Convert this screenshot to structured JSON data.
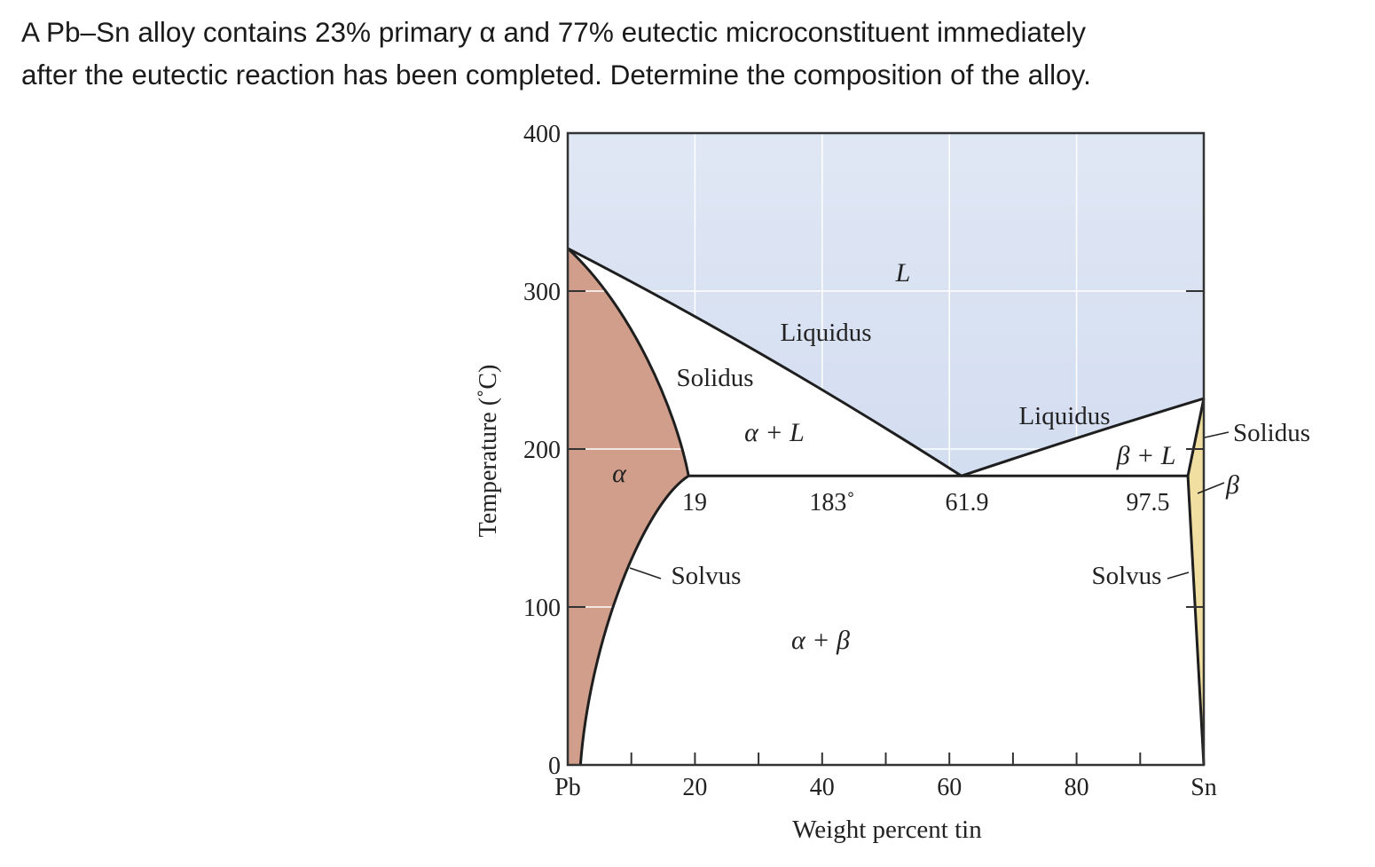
{
  "question": {
    "line1": "A Pb–Sn alloy contains 23% primary α and 77% eutectic microconstituent immediately",
    "line2": "after the eutectic reaction has been completed. Determine the composition of the alloy."
  },
  "chart_data": {
    "type": "phase-diagram",
    "xlabel": "Weight percent tin",
    "ylabel": "Temperature (˚C)",
    "xlim": [
      0,
      100
    ],
    "ylim": [
      0,
      400
    ],
    "x_ticks": [
      {
        "v": 0,
        "label": "Pb"
      },
      {
        "v": 20,
        "label": "20"
      },
      {
        "v": 40,
        "label": "40"
      },
      {
        "v": 60,
        "label": "60"
      },
      {
        "v": 80,
        "label": "80"
      },
      {
        "v": 100,
        "label": "Sn"
      }
    ],
    "y_ticks": [
      {
        "v": 0,
        "label": "0"
      },
      {
        "v": 100,
        "label": "100"
      },
      {
        "v": 200,
        "label": "200"
      },
      {
        "v": 300,
        "label": "300"
      },
      {
        "v": 400,
        "label": "400"
      }
    ],
    "grid": true,
    "key_points": {
      "pb_melting_c": 327,
      "sn_melting_c": 232,
      "eutectic_temp_c": 183,
      "alpha_max_solubility_wt_sn": 19,
      "eutectic_composition_wt_sn": 61.9,
      "beta_max_solubility_wt_sn": 97.5
    },
    "point_labels": {
      "alpha_limit": "19",
      "eutectic_temp": "183˚",
      "eutectic_comp": "61.9",
      "beta_limit": "97.5"
    },
    "region_labels": {
      "liquid": "L",
      "alpha": "α",
      "alpha_liquid": "α + L",
      "beta_liquid": "β + L",
      "alpha_beta": "α + β",
      "beta": "β"
    },
    "line_labels": {
      "liquidus_left": "Liquidus",
      "liquidus_right": "Liquidus",
      "solidus_left": "Solidus",
      "solidus_right": "Solidus",
      "solvus_left": "Solvus",
      "solvus_right": "Solvus"
    },
    "colors": {
      "liquid_top": "#e0e7f4",
      "liquid_bottom": "#c8d5ee",
      "alpha": "#d09e8a",
      "beta": "#f0dfa0",
      "lines": "#1e1e1e"
    }
  }
}
